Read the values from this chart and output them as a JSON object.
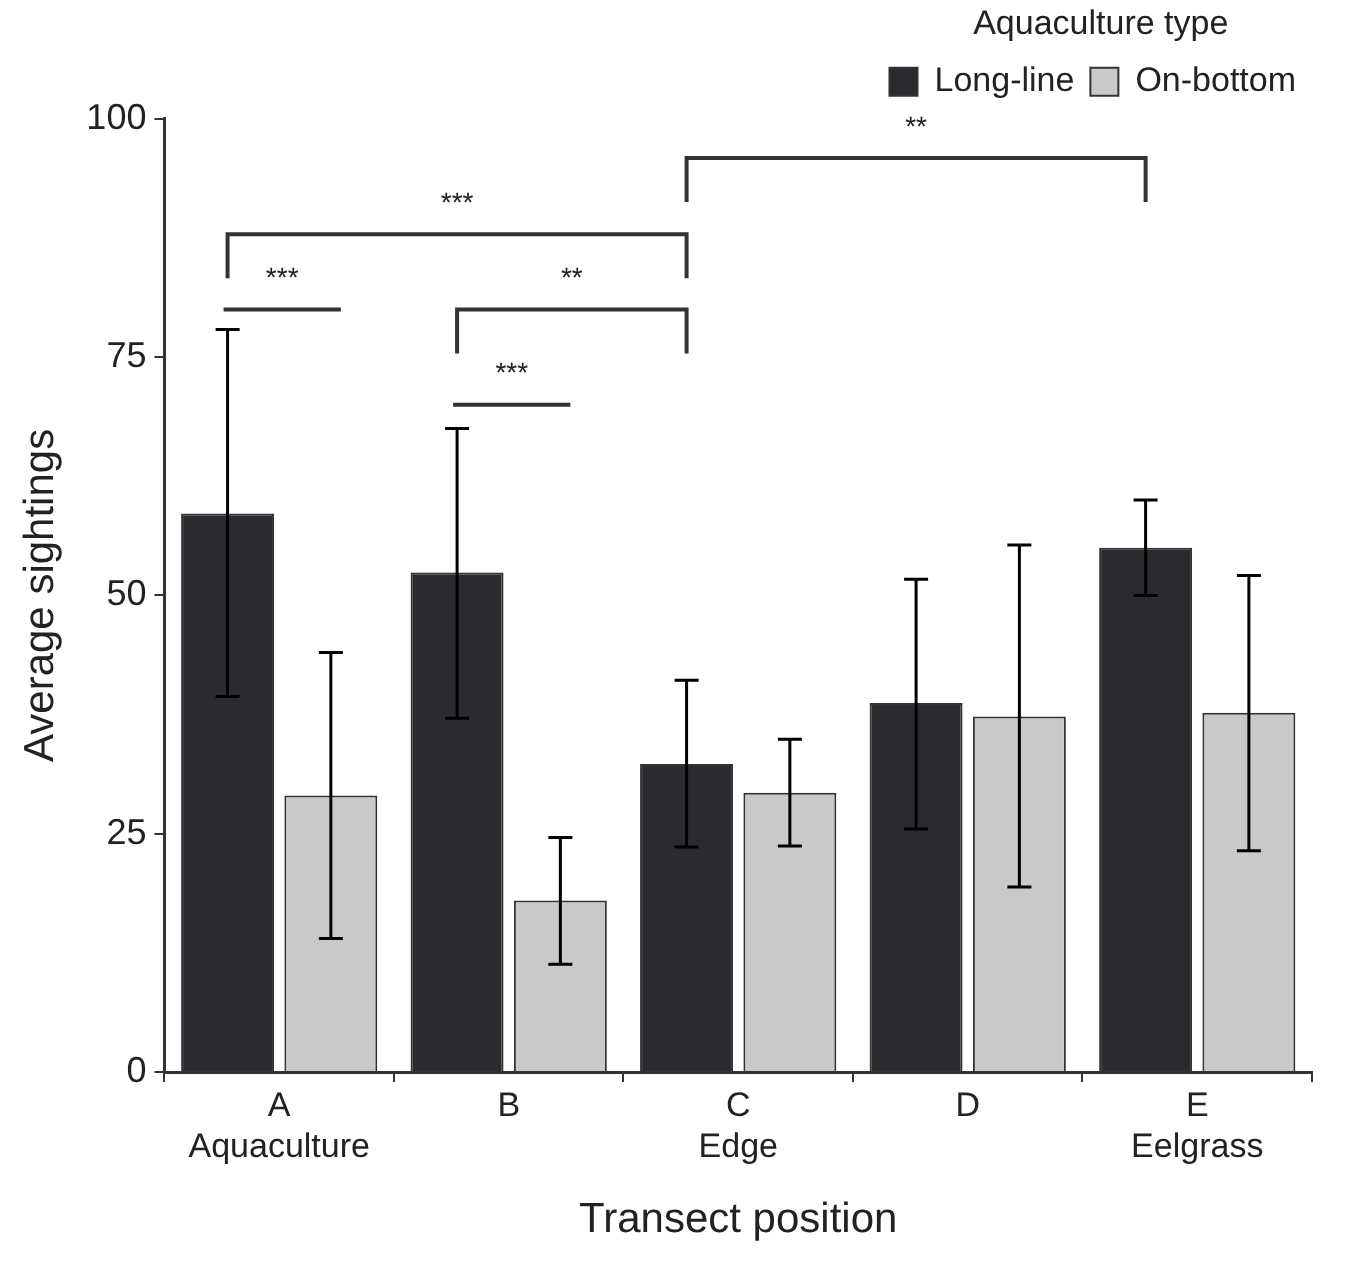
{
  "chart_data": {
    "type": "bar",
    "xlabel": "Transect position",
    "ylabel": "Average sightings",
    "legend_title": "Aquaculture type",
    "legend": "top right",
    "grid": false,
    "categories": [
      "A\nAquaculture",
      "B",
      "C\nEdge",
      "D",
      "E\nEelgrass"
    ],
    "ylim": [
      0,
      100
    ],
    "yticks": [
      0,
      25,
      50,
      75,
      100
    ],
    "series": [
      {
        "name": "Long-line",
        "color": "#2b2a2f",
        "values": [
          58.6,
          52.4,
          32.3,
          38.7,
          55.0
        ],
        "errors": [
          [
            39.4,
            77.9
          ],
          [
            37.1,
            67.5
          ],
          [
            23.6,
            41.1
          ],
          [
            25.5,
            51.7
          ],
          [
            50.0,
            60.0
          ]
        ]
      },
      {
        "name": "On-bottom",
        "color": "#c8c9cb",
        "values": [
          29.0,
          18.0,
          29.3,
          37.3,
          37.7
        ],
        "errors": [
          [
            14.0,
            44.0
          ],
          [
            11.3,
            24.6
          ],
          [
            23.7,
            34.9
          ],
          [
            19.4,
            55.3
          ],
          [
            23.2,
            52.1
          ]
        ]
      }
    ],
    "annotations": [
      "**",
      "***",
      "***",
      "**",
      "***"
    ]
  }
}
